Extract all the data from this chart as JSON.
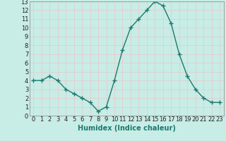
{
  "x": [
    0,
    1,
    2,
    3,
    4,
    5,
    6,
    7,
    8,
    9,
    10,
    11,
    12,
    13,
    14,
    15,
    16,
    17,
    18,
    19,
    20,
    21,
    22,
    23
  ],
  "y": [
    4.0,
    4.0,
    4.5,
    4.0,
    3.0,
    2.5,
    2.0,
    1.5,
    0.5,
    1.0,
    4.0,
    7.5,
    10.0,
    11.0,
    12.0,
    13.0,
    12.5,
    10.5,
    7.0,
    4.5,
    3.0,
    2.0,
    1.5,
    1.5
  ],
  "line_color": "#1a7a6e",
  "marker": "+",
  "marker_size": 4,
  "marker_linewidth": 1.0,
  "background_color": "#c8ece6",
  "grid_color": "#e8c8c8",
  "xlabel": "Humidex (Indice chaleur)",
  "xlabel_fontsize": 7,
  "xlim": [
    -0.5,
    23.5
  ],
  "ylim": [
    0,
    13
  ],
  "tick_fontsize": 6,
  "line_width": 1.0,
  "spine_color": "#888888"
}
